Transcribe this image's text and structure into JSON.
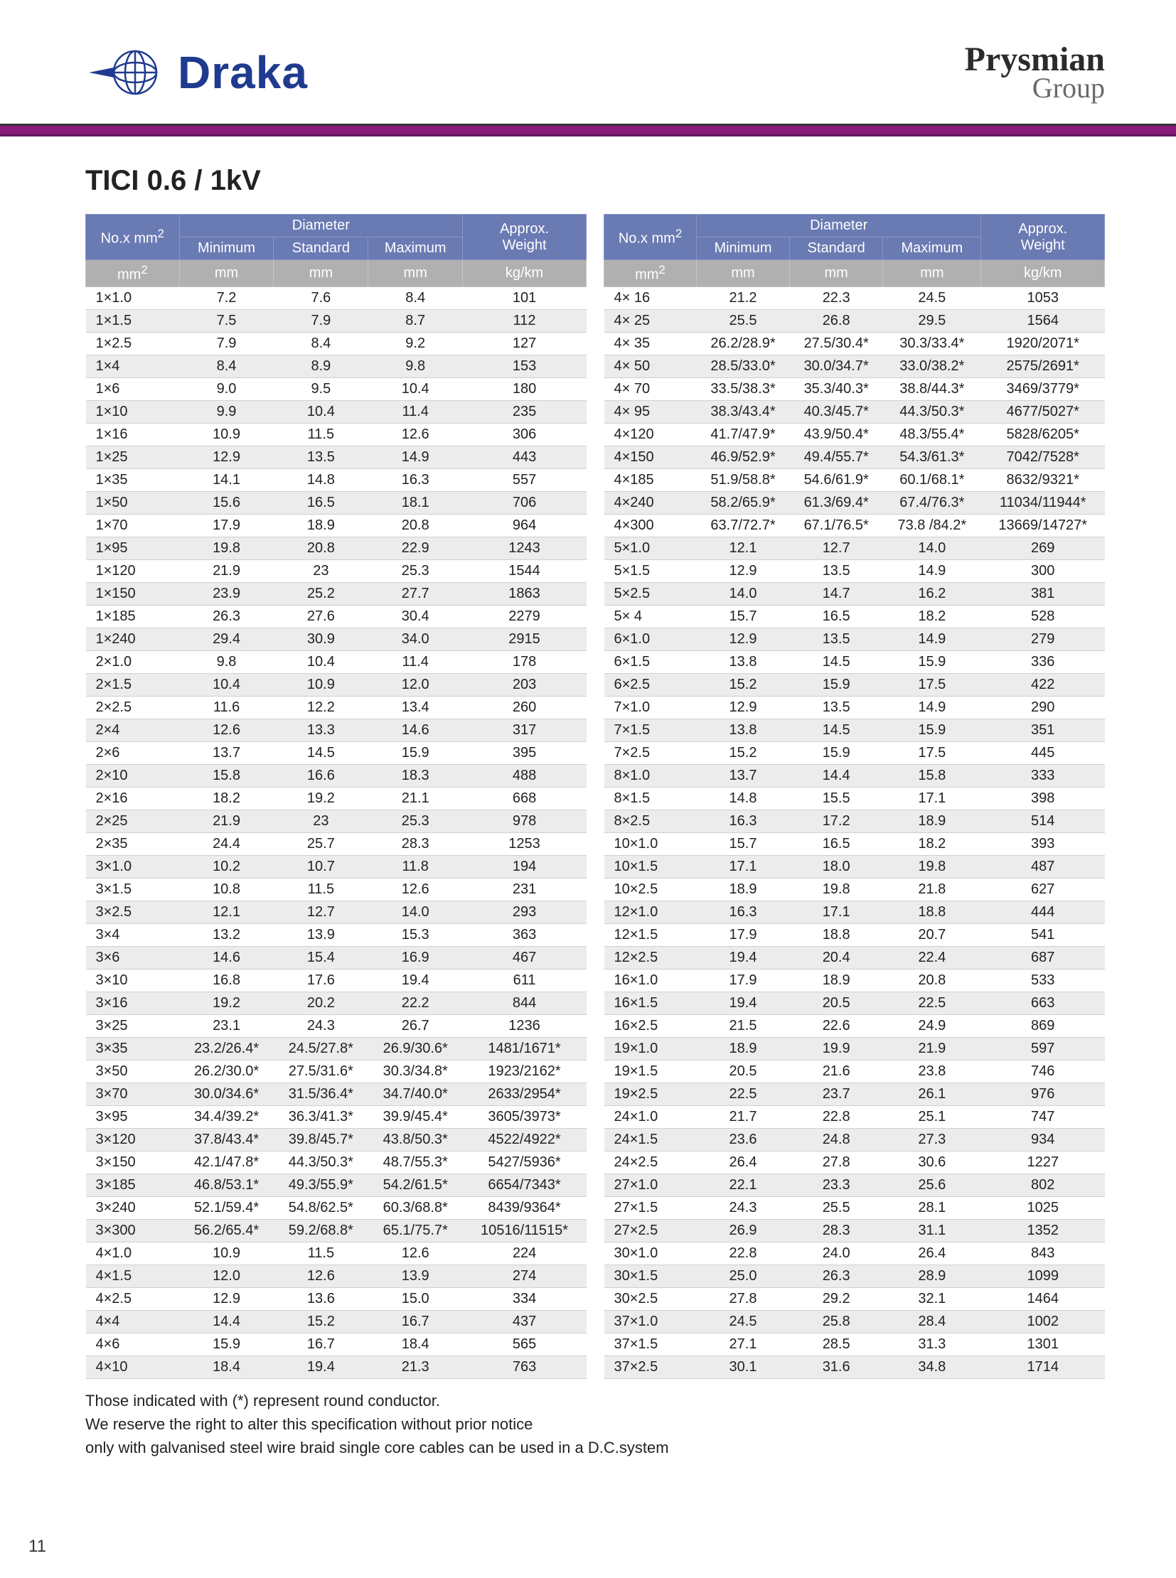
{
  "brand_left": "Draka",
  "brand_right_1": "Prysmian",
  "brand_right_2": "Group",
  "title": "TICI  0.6 / 1kV",
  "page_number": "11",
  "thead": {
    "col_size": "No.x mm",
    "col_size_sup": "2",
    "col_diam": "Diameter",
    "col_min": "Minimum",
    "col_std": "Standard",
    "col_max": "Maximum",
    "col_wt1": "Approx.",
    "col_wt2": "Weight",
    "u_size": "mm",
    "u_size_sup": "2",
    "u_mm": "mm",
    "u_wt": "kg/km"
  },
  "notes": [
    "Those indicated with (*) represent  round conductor.",
    "We  reserve the right to alter this specification without prior notice",
    "only with galvanised steel wire braid single core cables  can be used in a D.C.system"
  ],
  "left_rows": [
    [
      "1×1.0",
      "7.2",
      "7.6",
      "8.4",
      "101"
    ],
    [
      "1×1.5",
      "7.5",
      "7.9",
      "8.7",
      "112"
    ],
    [
      "1×2.5",
      "7.9",
      "8.4",
      "9.2",
      "127"
    ],
    [
      "1×4",
      "8.4",
      "8.9",
      "9.8",
      "153"
    ],
    [
      "1×6",
      "9.0",
      "9.5",
      "10.4",
      "180"
    ],
    [
      "1×10",
      "9.9",
      "10.4",
      "11.4",
      "235"
    ],
    [
      "1×16",
      "10.9",
      "11.5",
      "12.6",
      "306"
    ],
    [
      "1×25",
      "12.9",
      "13.5",
      "14.9",
      "443"
    ],
    [
      "1×35",
      "14.1",
      "14.8",
      "16.3",
      "557"
    ],
    [
      "1×50",
      "15.6",
      "16.5",
      "18.1",
      "706"
    ],
    [
      "1×70",
      "17.9",
      "18.9",
      "20.8",
      "964"
    ],
    [
      "1×95",
      "19.8",
      "20.8",
      "22.9",
      "1243"
    ],
    [
      "1×120",
      "21.9",
      "23",
      "25.3",
      "1544"
    ],
    [
      "1×150",
      "23.9",
      "25.2",
      "27.7",
      "1863"
    ],
    [
      "1×185",
      "26.3",
      "27.6",
      "30.4",
      "2279"
    ],
    [
      "1×240",
      "29.4",
      "30.9",
      "34.0",
      "2915"
    ],
    [
      "2×1.0",
      "9.8",
      "10.4",
      "11.4",
      "178"
    ],
    [
      "2×1.5",
      "10.4",
      "10.9",
      "12.0",
      "203"
    ],
    [
      "2×2.5",
      "11.6",
      "12.2",
      "13.4",
      "260"
    ],
    [
      "2×4",
      "12.6",
      "13.3",
      "14.6",
      "317"
    ],
    [
      "2×6",
      "13.7",
      "14.5",
      "15.9",
      "395"
    ],
    [
      "2×10",
      "15.8",
      "16.6",
      "18.3",
      "488"
    ],
    [
      "2×16",
      "18.2",
      "19.2",
      "21.1",
      "668"
    ],
    [
      "2×25",
      "21.9",
      "23",
      "25.3",
      "978"
    ],
    [
      "2×35",
      "24.4",
      "25.7",
      "28.3",
      "1253"
    ],
    [
      "3×1.0",
      "10.2",
      "10.7",
      "11.8",
      "194"
    ],
    [
      "3×1.5",
      "10.8",
      "11.5",
      "12.6",
      "231"
    ],
    [
      "3×2.5",
      "12.1",
      "12.7",
      "14.0",
      "293"
    ],
    [
      "3×4",
      "13.2",
      "13.9",
      "15.3",
      "363"
    ],
    [
      "3×6",
      "14.6",
      "15.4",
      "16.9",
      "467"
    ],
    [
      "3×10",
      "16.8",
      "17.6",
      "19.4",
      "611"
    ],
    [
      "3×16",
      "19.2",
      "20.2",
      "22.2",
      "844"
    ],
    [
      "3×25",
      "23.1",
      "24.3",
      "26.7",
      "1236"
    ],
    [
      "3×35",
      "23.2/26.4*",
      "24.5/27.8*",
      "26.9/30.6*",
      "1481/1671*"
    ],
    [
      "3×50",
      "26.2/30.0*",
      "27.5/31.6*",
      "30.3/34.8*",
      "1923/2162*"
    ],
    [
      "3×70",
      "30.0/34.6*",
      "31.5/36.4*",
      "34.7/40.0*",
      "2633/2954*"
    ],
    [
      "3×95",
      "34.4/39.2*",
      "36.3/41.3*",
      "39.9/45.4*",
      "3605/3973*"
    ],
    [
      "3×120",
      "37.8/43.4*",
      "39.8/45.7*",
      "43.8/50.3*",
      "4522/4922*"
    ],
    [
      "3×150",
      "42.1/47.8*",
      "44.3/50.3*",
      "48.7/55.3*",
      "5427/5936*"
    ],
    [
      "3×185",
      "46.8/53.1*",
      "49.3/55.9*",
      "54.2/61.5*",
      "6654/7343*"
    ],
    [
      "3×240",
      "52.1/59.4*",
      "54.8/62.5*",
      "60.3/68.8*",
      "8439/9364*"
    ],
    [
      "3×300",
      "56.2/65.4*",
      "59.2/68.8*",
      "65.1/75.7*",
      "10516/11515*"
    ],
    [
      "4×1.0",
      "10.9",
      "11.5",
      "12.6",
      "224"
    ],
    [
      "4×1.5",
      "12.0",
      "12.6",
      "13.9",
      "274"
    ],
    [
      "4×2.5",
      "12.9",
      "13.6",
      "15.0",
      "334"
    ],
    [
      "4×4",
      "14.4",
      "15.2",
      "16.7",
      "437"
    ],
    [
      "4×6",
      "15.9",
      "16.7",
      "18.4",
      "565"
    ],
    [
      "4×10",
      "18.4",
      "19.4",
      "21.3",
      "763"
    ]
  ],
  "right_rows": [
    [
      "4× 16",
      "21.2",
      "22.3",
      "24.5",
      "1053"
    ],
    [
      "4× 25",
      "25.5",
      "26.8",
      "29.5",
      "1564"
    ],
    [
      "4× 35",
      "26.2/28.9*",
      "27.5/30.4*",
      "30.3/33.4*",
      "1920/2071*"
    ],
    [
      "4× 50",
      "28.5/33.0*",
      "30.0/34.7*",
      "33.0/38.2*",
      "2575/2691*"
    ],
    [
      "4× 70",
      "33.5/38.3*",
      "35.3/40.3*",
      "38.8/44.3*",
      "3469/3779*"
    ],
    [
      "4× 95",
      "38.3/43.4*",
      "40.3/45.7*",
      "44.3/50.3*",
      "4677/5027*"
    ],
    [
      "4×120",
      "41.7/47.9*",
      "43.9/50.4*",
      "48.3/55.4*",
      "5828/6205*"
    ],
    [
      "4×150",
      "46.9/52.9*",
      "49.4/55.7*",
      "54.3/61.3*",
      "7042/7528*"
    ],
    [
      "4×185",
      "51.9/58.8*",
      "54.6/61.9*",
      "60.1/68.1*",
      "8632/9321*"
    ],
    [
      "4×240",
      "58.2/65.9*",
      "61.3/69.4*",
      "67.4/76.3*",
      "11034/11944*"
    ],
    [
      "4×300",
      "63.7/72.7*",
      "67.1/76.5*",
      "73.8 /84.2*",
      "13669/14727*"
    ],
    [
      "5×1.0",
      "12.1",
      "12.7",
      "14.0",
      "269"
    ],
    [
      "5×1.5",
      "12.9",
      "13.5",
      "14.9",
      "300"
    ],
    [
      "5×2.5",
      "14.0",
      "14.7",
      "16.2",
      "381"
    ],
    [
      "5× 4",
      "15.7",
      "16.5",
      "18.2",
      "528"
    ],
    [
      "6×1.0",
      "12.9",
      "13.5",
      "14.9",
      "279"
    ],
    [
      "6×1.5",
      "13.8",
      "14.5",
      "15.9",
      "336"
    ],
    [
      "6×2.5",
      "15.2",
      "15.9",
      "17.5",
      "422"
    ],
    [
      "7×1.0",
      "12.9",
      "13.5",
      "14.9",
      "290"
    ],
    [
      "7×1.5",
      "13.8",
      "14.5",
      "15.9",
      "351"
    ],
    [
      "7×2.5",
      "15.2",
      "15.9",
      "17.5",
      "445"
    ],
    [
      "8×1.0",
      "13.7",
      "14.4",
      "15.8",
      "333"
    ],
    [
      "8×1.5",
      "14.8",
      "15.5",
      "17.1",
      "398"
    ],
    [
      "8×2.5",
      "16.3",
      "17.2",
      "18.9",
      "514"
    ],
    [
      "10×1.0",
      "15.7",
      "16.5",
      "18.2",
      "393"
    ],
    [
      "10×1.5",
      "17.1",
      "18.0",
      "19.8",
      "487"
    ],
    [
      "10×2.5",
      "18.9",
      "19.8",
      "21.8",
      "627"
    ],
    [
      "12×1.0",
      "16.3",
      "17.1",
      "18.8",
      "444"
    ],
    [
      "12×1.5",
      "17.9",
      "18.8",
      "20.7",
      "541"
    ],
    [
      "12×2.5",
      "19.4",
      "20.4",
      "22.4",
      "687"
    ],
    [
      "16×1.0",
      "17.9",
      "18.9",
      "20.8",
      "533"
    ],
    [
      "16×1.5",
      "19.4",
      "20.5",
      "22.5",
      "663"
    ],
    [
      "16×2.5",
      "21.5",
      "22.6",
      "24.9",
      "869"
    ],
    [
      "19×1.0",
      "18.9",
      "19.9",
      "21.9",
      "597"
    ],
    [
      "19×1.5",
      "20.5",
      "21.6",
      "23.8",
      "746"
    ],
    [
      "19×2.5",
      "22.5",
      "23.7",
      "26.1",
      "976"
    ],
    [
      "24×1.0",
      "21.7",
      "22.8",
      "25.1",
      "747"
    ],
    [
      "24×1.5",
      "23.6",
      "24.8",
      "27.3",
      "934"
    ],
    [
      "24×2.5",
      "26.4",
      "27.8",
      "30.6",
      "1227"
    ],
    [
      "27×1.0",
      "22.1",
      "23.3",
      "25.6",
      "802"
    ],
    [
      "27×1.5",
      "24.3",
      "25.5",
      "28.1",
      "1025"
    ],
    [
      "27×2.5",
      "26.9",
      "28.3",
      "31.1",
      "1352"
    ],
    [
      "30×1.0",
      "22.8",
      "24.0",
      "26.4",
      "843"
    ],
    [
      "30×1.5",
      "25.0",
      "26.3",
      "28.9",
      "1099"
    ],
    [
      "30×2.5",
      "27.8",
      "29.2",
      "32.1",
      "1464"
    ],
    [
      "37×1.0",
      "24.5",
      "25.8",
      "28.4",
      "1002"
    ],
    [
      "37×1.5",
      "27.1",
      "28.5",
      "31.3",
      "1301"
    ],
    [
      "37×2.5",
      "30.1",
      "31.6",
      "34.8",
      "1714"
    ]
  ]
}
